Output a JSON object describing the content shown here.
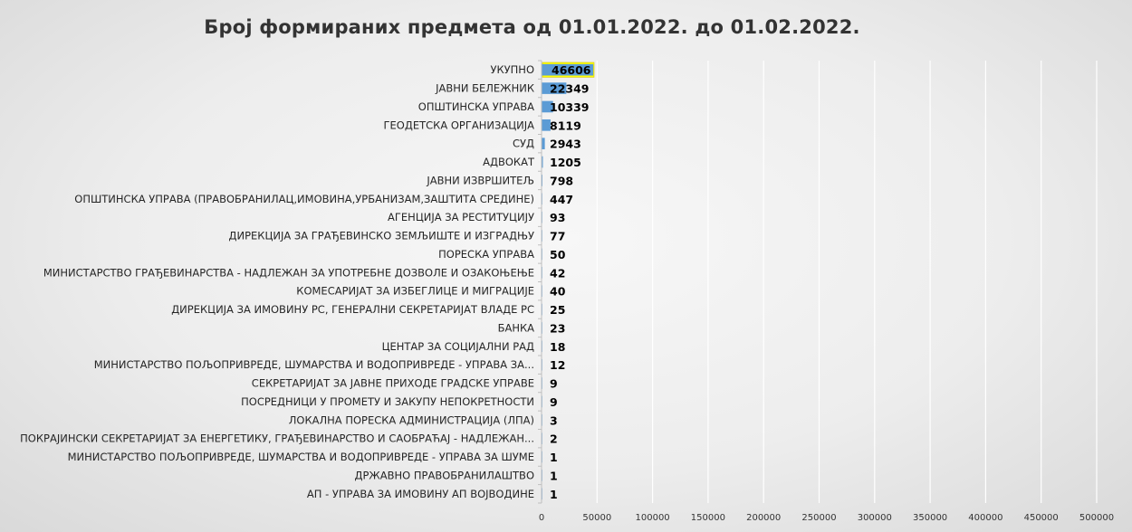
{
  "chart_data": {
    "type": "bar",
    "orientation": "horizontal",
    "title": "Број формираних предмета од 01.01.2022. до 01.02.2022.",
    "categories": [
      "УКУПНО",
      "ЈАВНИ БЕЛЕЖНИК",
      "ОПШТИНСКА УПРАВА",
      "ГЕОДЕТСКА ОРГАНИЗАЦИЈА",
      "СУД",
      "АДВОКАТ",
      "ЈАВНИ ИЗВРШИТЕЉ",
      "ОПШТИНСКА УПРАВА (ПРАВОБРАНИЛАЦ,ИМОВИНА,УРБАНИЗАМ,ЗАШТИТА  СРЕДИНЕ)",
      "АГЕНЦИЈА ЗА РЕСТИТУЦИЈУ",
      "ДИРЕКЦИЈА ЗА ГРАЂЕВИНСКО ЗЕМЉИШТЕ И ИЗГРАДЊУ",
      "ПОРЕСКА  УПРАВА",
      "МИНИСТАРСТВО  ГРАЂЕВИНАРСТВА  - НАДЛЕЖАН ЗА УПОТРЕБНЕ ДОЗВОЛЕ И ОЗАКОЊЕЊЕ",
      "КОМЕСАРИЈАТ  ЗА ИЗБЕГЛИЦЕ И МИГРАЦИЈЕ",
      "ДИРЕКЦИЈА ЗА ИМОВИНУ РС, ГЕНЕРАЛНИ СЕКРЕТАРИЈАТ  ВЛАДЕ РС",
      "БАНКА",
      "ЦЕНТАР ЗА СОЦИЈАЛНИ  РАД",
      "МИНИСТАРСТВО  ПОЉОПРИВРЕДЕ, ШУМАРСТВА И ВОДОПРИВРЕДЕ  - УПРАВА ЗА...",
      "СЕКРЕТАРИЈАТ  ЗА ЈАВНЕ ПРИХОДЕ  ГРАДСКЕ  УПРАВЕ",
      "ПОСРЕДНИЦИ  У ПРОМЕТУ И ЗАКУПУ НЕПОКРЕТНОСТИ",
      "ЛОКАЛНА ПОРЕСКА АДМИНИСТРАЦИЈА  (ЛПА)",
      "ПОКРАЈИНСКИ СЕКРЕТАРИЈАТ  ЗА ЕНЕРГЕТИКУ, ГРАЂЕВИНАРСТВО  И САОБРАЋАЈ  - НАДЛЕЖАН...",
      "МИНИСТАРСТВО  ПОЉОПРИВРЕДЕ, ШУМАРСТВА И ВОДОПРИВРЕДЕ  - УПРАВА ЗА ШУМЕ",
      "ДРЖАВНО ПРАВОБРАНИЛАШТВО",
      "АП - УПРАВА ЗА ИМОВИНУ АП ВОЈВОДИНЕ"
    ],
    "values": [
      46606,
      22349,
      10339,
      8119,
      2943,
      1205,
      798,
      447,
      93,
      77,
      50,
      42,
      40,
      25,
      23,
      18,
      12,
      9,
      9,
      3,
      2,
      1,
      1,
      1
    ],
    "xlim": [
      0,
      500000
    ],
    "xticks": [
      "0",
      "50000",
      "100000",
      "150000",
      "200000",
      "250000",
      "300000",
      "350000",
      "400000",
      "450000",
      "500000"
    ],
    "gridlines": true,
    "legend": "none",
    "colors": {
      "bar": "#5b9bd5",
      "highlight_box": "#ffff00",
      "grid": "#ffffff"
    }
  }
}
